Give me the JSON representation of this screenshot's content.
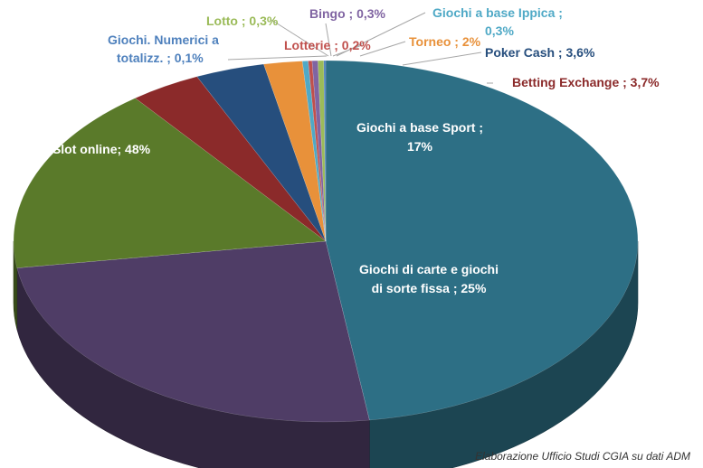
{
  "chart_data": {
    "type": "pie",
    "style": "3d",
    "slices": [
      {
        "label": "Slot online",
        "text": "Slot online; 48%",
        "value": 48,
        "color": "#2d6f85",
        "label_color": "#ffffff"
      },
      {
        "label": "Giochi di carte e giochi di sorte fissa",
        "text": "Giochi di carte e giochi\ndi sorte fissa ; 25%",
        "value": 25,
        "color": "#4f3d66",
        "label_color": "#ffffff"
      },
      {
        "label": "Giochi a base Sport",
        "text": "Giochi a base Sport ;\n17%",
        "value": 17,
        "color": "#5a7a2a",
        "label_color": "#ffffff"
      },
      {
        "label": "Betting Exchange",
        "text": "Betting Exchange ; 3,7%",
        "value": 3.7,
        "color": "#8b2a2a",
        "label_color": "#8b2a2a"
      },
      {
        "label": "Poker Cash",
        "text": "Poker Cash ; 3,6%",
        "value": 3.6,
        "color": "#264e7d",
        "label_color": "#264e7d"
      },
      {
        "label": "Torneo",
        "text": "Torneo ; 2%",
        "value": 2,
        "color": "#e8913a",
        "label_color": "#e8913a"
      },
      {
        "label": "Giochi a base Ippica",
        "text": "Giochi a base Ippica ;\n0,3%",
        "value": 0.3,
        "color": "#4fa9c6",
        "label_color": "#4fa9c6"
      },
      {
        "label": "Lotterie",
        "text": "Lotterie ; 0,2%",
        "value": 0.2,
        "color": "#c0504d",
        "label_color": "#c0504d"
      },
      {
        "label": "Bingo",
        "text": "Bingo ; 0,3%",
        "value": 0.3,
        "color": "#8064a2",
        "label_color": "#8064a2"
      },
      {
        "label": "Lotto",
        "text": "Lotto ; 0,3%",
        "value": 0.3,
        "color": "#9bbb59",
        "label_color": "#9bbb59"
      },
      {
        "label": "Giochi. Numerici a totalizz.",
        "text": "Giochi. Numerici a\ntotalizz. ; 0,1%",
        "value": 0.1,
        "color": "#4f81bd",
        "label_color": "#4f81bd"
      }
    ],
    "legend": "none"
  },
  "source_note": "Elaborazione Ufficio Studi CGIA su dati ADM"
}
